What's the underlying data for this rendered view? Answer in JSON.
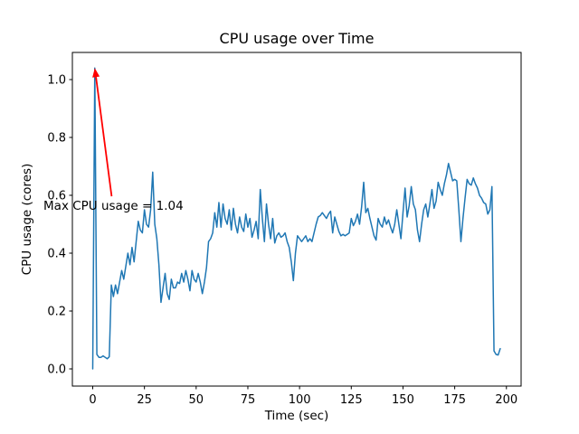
{
  "window": {
    "background": "#ffffff"
  },
  "chart_data": {
    "type": "line",
    "title": "CPU usage over Time",
    "xlabel": "Time (sec)",
    "ylabel": "CPU usage (cores)",
    "line_color": "#1f77b4",
    "frame_color": "#000000",
    "xlim": [
      -9.84,
      207.1
    ],
    "ylim": [
      -0.0594,
      1.0938
    ],
    "xticks": [
      0,
      25,
      50,
      75,
      100,
      125,
      150,
      175,
      200
    ],
    "yticks": [
      0.0,
      0.2,
      0.4,
      0.6,
      0.8,
      1.0
    ],
    "grid": false,
    "legend": "none",
    "max_value": 1.04,
    "annotation": {
      "text": "Max CPU usage = 1.04",
      "color": "#ff0000",
      "xy": [
        1,
        1.04
      ],
      "xytext": [
        10,
        0.55
      ]
    },
    "points": [
      [
        0,
        0.0
      ],
      [
        1,
        1.04
      ],
      [
        2,
        0.05
      ],
      [
        3,
        0.04
      ],
      [
        4,
        0.04
      ],
      [
        5,
        0.045
      ],
      [
        6,
        0.04
      ],
      [
        7,
        0.035
      ],
      [
        8,
        0.042
      ],
      [
        9,
        0.29
      ],
      [
        10,
        0.25
      ],
      [
        11,
        0.29
      ],
      [
        12,
        0.26
      ],
      [
        13,
        0.3
      ],
      [
        14,
        0.34
      ],
      [
        15,
        0.31
      ],
      [
        16,
        0.355
      ],
      [
        17,
        0.4
      ],
      [
        18,
        0.36
      ],
      [
        19,
        0.42
      ],
      [
        20,
        0.37
      ],
      [
        21,
        0.44
      ],
      [
        22,
        0.51
      ],
      [
        23,
        0.48
      ],
      [
        24,
        0.47
      ],
      [
        25,
        0.55
      ],
      [
        26,
        0.5
      ],
      [
        27,
        0.49
      ],
      [
        28,
        0.55
      ],
      [
        29,
        0.68
      ],
      [
        30,
        0.5
      ],
      [
        31,
        0.45
      ],
      [
        32,
        0.36
      ],
      [
        33,
        0.23
      ],
      [
        34,
        0.28
      ],
      [
        35,
        0.33
      ],
      [
        36,
        0.26
      ],
      [
        37,
        0.24
      ],
      [
        38,
        0.31
      ],
      [
        39,
        0.28
      ],
      [
        40,
        0.28
      ],
      [
        41,
        0.3
      ],
      [
        42,
        0.295
      ],
      [
        43,
        0.33
      ],
      [
        44,
        0.3
      ],
      [
        45,
        0.34
      ],
      [
        46,
        0.31
      ],
      [
        47,
        0.27
      ],
      [
        48,
        0.34
      ],
      [
        49,
        0.31
      ],
      [
        50,
        0.3
      ],
      [
        51,
        0.33
      ],
      [
        52,
        0.3
      ],
      [
        53,
        0.26
      ],
      [
        54,
        0.3
      ],
      [
        55,
        0.35
      ],
      [
        56,
        0.44
      ],
      [
        57,
        0.45
      ],
      [
        58,
        0.47
      ],
      [
        59,
        0.54
      ],
      [
        60,
        0.49
      ],
      [
        61,
        0.575
      ],
      [
        62,
        0.49
      ],
      [
        63,
        0.57
      ],
      [
        64,
        0.52
      ],
      [
        65,
        0.5
      ],
      [
        66,
        0.55
      ],
      [
        67,
        0.48
      ],
      [
        68,
        0.555
      ],
      [
        69,
        0.5
      ],
      [
        70,
        0.47
      ],
      [
        71,
        0.525
      ],
      [
        72,
        0.49
      ],
      [
        73,
        0.475
      ],
      [
        74,
        0.535
      ],
      [
        75,
        0.49
      ],
      [
        76,
        0.52
      ],
      [
        77,
        0.455
      ],
      [
        78,
        0.48
      ],
      [
        79,
        0.51
      ],
      [
        80,
        0.45
      ],
      [
        81,
        0.62
      ],
      [
        82,
        0.52
      ],
      [
        83,
        0.44
      ],
      [
        84,
        0.57
      ],
      [
        85,
        0.5
      ],
      [
        86,
        0.45
      ],
      [
        87,
        0.52
      ],
      [
        88,
        0.435
      ],
      [
        89,
        0.46
      ],
      [
        90,
        0.47
      ],
      [
        91,
        0.455
      ],
      [
        92,
        0.46
      ],
      [
        93,
        0.47
      ],
      [
        94,
        0.44
      ],
      [
        95,
        0.42
      ],
      [
        96,
        0.37
      ],
      [
        97,
        0.305
      ],
      [
        98,
        0.4
      ],
      [
        99,
        0.46
      ],
      [
        100,
        0.45
      ],
      [
        101,
        0.44
      ],
      [
        102,
        0.45
      ],
      [
        103,
        0.46
      ],
      [
        104,
        0.44
      ],
      [
        105,
        0.45
      ],
      [
        106,
        0.44
      ],
      [
        107,
        0.47
      ],
      [
        108,
        0.5
      ],
      [
        109,
        0.525
      ],
      [
        110,
        0.53
      ],
      [
        111,
        0.54
      ],
      [
        112,
        0.53
      ],
      [
        113,
        0.52
      ],
      [
        114,
        0.535
      ],
      [
        115,
        0.545
      ],
      [
        116,
        0.47
      ],
      [
        117,
        0.525
      ],
      [
        118,
        0.5
      ],
      [
        119,
        0.475
      ],
      [
        120,
        0.46
      ],
      [
        121,
        0.465
      ],
      [
        122,
        0.46
      ],
      [
        123,
        0.465
      ],
      [
        124,
        0.47
      ],
      [
        125,
        0.52
      ],
      [
        126,
        0.495
      ],
      [
        127,
        0.51
      ],
      [
        128,
        0.535
      ],
      [
        129,
        0.5
      ],
      [
        130,
        0.56
      ],
      [
        131,
        0.645
      ],
      [
        132,
        0.54
      ],
      [
        133,
        0.555
      ],
      [
        134,
        0.52
      ],
      [
        135,
        0.49
      ],
      [
        136,
        0.46
      ],
      [
        137,
        0.445
      ],
      [
        138,
        0.52
      ],
      [
        139,
        0.5
      ],
      [
        140,
        0.49
      ],
      [
        141,
        0.525
      ],
      [
        142,
        0.5
      ],
      [
        143,
        0.515
      ],
      [
        144,
        0.49
      ],
      [
        145,
        0.47
      ],
      [
        146,
        0.5
      ],
      [
        147,
        0.55
      ],
      [
        148,
        0.5
      ],
      [
        149,
        0.45
      ],
      [
        150,
        0.54
      ],
      [
        151,
        0.625
      ],
      [
        152,
        0.525
      ],
      [
        153,
        0.565
      ],
      [
        154,
        0.63
      ],
      [
        155,
        0.57
      ],
      [
        156,
        0.55
      ],
      [
        157,
        0.48
      ],
      [
        158,
        0.44
      ],
      [
        159,
        0.5
      ],
      [
        160,
        0.55
      ],
      [
        161,
        0.57
      ],
      [
        162,
        0.525
      ],
      [
        163,
        0.57
      ],
      [
        164,
        0.62
      ],
      [
        165,
        0.555
      ],
      [
        166,
        0.58
      ],
      [
        167,
        0.645
      ],
      [
        168,
        0.62
      ],
      [
        169,
        0.6
      ],
      [
        170,
        0.64
      ],
      [
        171,
        0.67
      ],
      [
        172,
        0.71
      ],
      [
        173,
        0.68
      ],
      [
        174,
        0.65
      ],
      [
        175,
        0.655
      ],
      [
        176,
        0.65
      ],
      [
        177,
        0.55
      ],
      [
        178,
        0.44
      ],
      [
        179,
        0.52
      ],
      [
        180,
        0.59
      ],
      [
        181,
        0.655
      ],
      [
        182,
        0.64
      ],
      [
        183,
        0.635
      ],
      [
        184,
        0.66
      ],
      [
        185,
        0.64
      ],
      [
        186,
        0.625
      ],
      [
        187,
        0.6
      ],
      [
        188,
        0.59
      ],
      [
        189,
        0.575
      ],
      [
        190,
        0.57
      ],
      [
        191,
        0.535
      ],
      [
        192,
        0.55
      ],
      [
        193,
        0.63
      ],
      [
        194,
        0.062
      ],
      [
        195,
        0.05
      ],
      [
        196,
        0.048
      ],
      [
        197,
        0.07
      ]
    ]
  }
}
